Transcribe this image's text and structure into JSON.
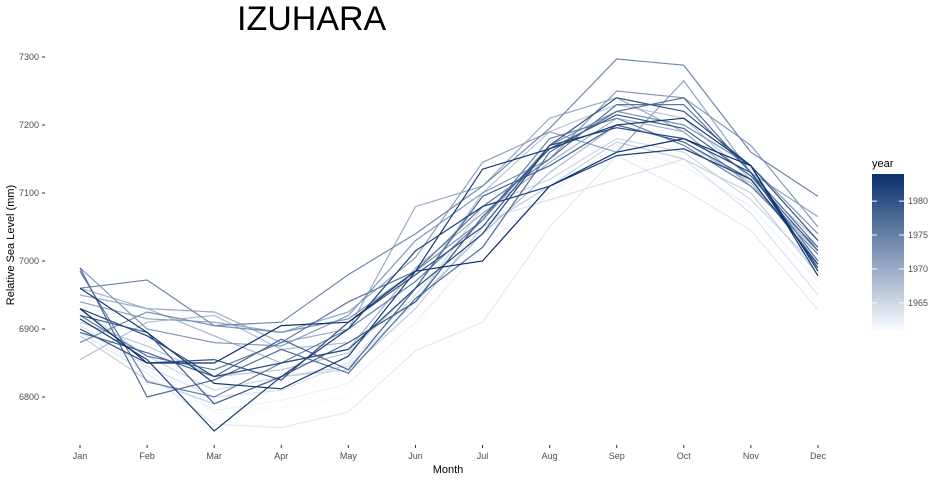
{
  "chart_data": {
    "type": "line",
    "title": "IZUHARA",
    "xlabel": "Month",
    "ylabel": "Relative Sea Level (mm)",
    "categories": [
      "Jan",
      "Feb",
      "Mar",
      "Apr",
      "May",
      "Jun",
      "Jul",
      "Aug",
      "Sep",
      "Oct",
      "Nov",
      "Dec"
    ],
    "ylim": [
      6740,
      7310
    ],
    "yticks": [
      6800,
      6900,
      7000,
      7100,
      7200,
      7300
    ],
    "ytick_labels": [
      "6800",
      "6900",
      "7000",
      "7100",
      "7200",
      "7300"
    ],
    "grid": false,
    "legend": {
      "title": "year",
      "placement": "right",
      "type": "colorbar",
      "range": [
        1961,
        1984
      ],
      "ticks": [
        1965,
        1970,
        1975,
        1980
      ],
      "tick_labels": [
        "1965",
        "1970",
        "1975",
        "1980"
      ],
      "color_low": "#f7fbff",
      "color_high": "#08306b"
    },
    "series": [
      {
        "year": 1961,
        "values": [
          6880,
          6855,
          6775,
          6785,
          6800,
          6900,
          7040,
          7080,
          7160,
          7130,
          7060,
          6960
        ]
      },
      {
        "year": 1962,
        "values": [
          6900,
          6840,
          6780,
          6795,
          6820,
          6910,
          7020,
          7100,
          7170,
          7140,
          7080,
          6970
        ]
      },
      {
        "year": 1963,
        "values": [
          6895,
          6835,
          6760,
          6755,
          6778,
          6868,
          6910,
          7050,
          7155,
          7105,
          7045,
          6928
        ]
      },
      {
        "year": 1964,
        "values": [
          6905,
          6845,
          6800,
          6810,
          6850,
          6950,
          7060,
          7090,
          7120,
          7150,
          7070,
          6950
        ]
      },
      {
        "year": 1965,
        "values": [
          6930,
          6860,
          6810,
          6830,
          6845,
          6940,
          7080,
          7120,
          7180,
          7160,
          7090,
          6990
        ]
      },
      {
        "year": 1966,
        "values": [
          6890,
          6825,
          6790,
          6830,
          6840,
          6930,
          7050,
          7110,
          7175,
          7150,
          7100,
          6980
        ]
      },
      {
        "year": 1967,
        "values": [
          6910,
          6875,
          6830,
          6840,
          6865,
          6960,
          7100,
          7190,
          7230,
          7210,
          7120,
          7030
        ]
      },
      {
        "year": 1968,
        "values": [
          6855,
          6910,
          6920,
          6870,
          6880,
          6940,
          7040,
          7130,
          7200,
          7175,
          7115,
          7000
        ]
      },
      {
        "year": 1969,
        "values": [
          6960,
          6930,
          6890,
          6850,
          6870,
          6990,
          7070,
          7145,
          7210,
          7190,
          7110,
          7015
        ]
      },
      {
        "year": 1970,
        "values": [
          6950,
          6930,
          6925,
          6880,
          6900,
          7080,
          7110,
          7210,
          7240,
          7190,
          7110,
          7020
        ]
      },
      {
        "year": 1971,
        "values": [
          6940,
          6915,
          6910,
          6895,
          6925,
          7005,
          7145,
          7190,
          7160,
          7265,
          7130,
          7065
        ]
      },
      {
        "year": 1972,
        "values": [
          6990,
          6900,
          6880,
          6875,
          6920,
          7030,
          7100,
          7150,
          7250,
          7240,
          7170,
          7050
        ]
      },
      {
        "year": 1973,
        "values": [
          6880,
          6925,
          6905,
          6895,
          6915,
          6985,
          7060,
          7170,
          7220,
          7200,
          7140,
          7040
        ]
      },
      {
        "year": 1974,
        "values": [
          6960,
          6972,
          6905,
          6910,
          6980,
          7040,
          7110,
          7195,
          7297,
          7288,
          7160,
          7095
        ]
      },
      {
        "year": 1975,
        "values": [
          6985,
          6822,
          6800,
          6850,
          6900,
          6970,
          7060,
          7180,
          7210,
          7170,
          7110,
          7010
        ]
      },
      {
        "year": 1976,
        "values": [
          6920,
          6860,
          6840,
          6880,
          6940,
          6985,
          7080,
          7150,
          7230,
          7230,
          7130,
          7000
        ]
      },
      {
        "year": 1977,
        "values": [
          6990,
          6800,
          6825,
          6870,
          6835,
          6945,
          7020,
          7160,
          7220,
          7240,
          7130,
          7020
        ]
      },
      {
        "year": 1978,
        "values": [
          6895,
          6865,
          6830,
          6885,
          6840,
          6960,
          7095,
          7140,
          7200,
          7175,
          7120,
          6995
        ]
      },
      {
        "year": 1979,
        "values": [
          6920,
          6895,
          6790,
          6830,
          6880,
          6940,
          7065,
          7165,
          7215,
          7195,
          7125,
          7015
        ]
      },
      {
        "year": 1980,
        "values": [
          6900,
          6850,
          6855,
          6825,
          6910,
          6980,
          7050,
          7170,
          7240,
          7220,
          7140,
          7030
        ]
      },
      {
        "year": 1981,
        "values": [
          6930,
          6890,
          6830,
          6850,
          6870,
          6960,
          7040,
          7170,
          7196,
          7180,
          7130,
          6990
        ]
      },
      {
        "year": 1982,
        "values": [
          6915,
          6855,
          6750,
          6830,
          6900,
          7015,
          7080,
          7110,
          7155,
          7165,
          7120,
          6995
        ]
      },
      {
        "year": 1983,
        "values": [
          6960,
          6895,
          6820,
          6812,
          6860,
          6985,
          7135,
          7165,
          7200,
          7210,
          7140,
          6978
        ]
      },
      {
        "year": 1984,
        "values": [
          6930,
          6850,
          6850,
          6905,
          6910,
          6985,
          7000,
          7110,
          7160,
          7180,
          7140,
          6985
        ]
      }
    ]
  }
}
